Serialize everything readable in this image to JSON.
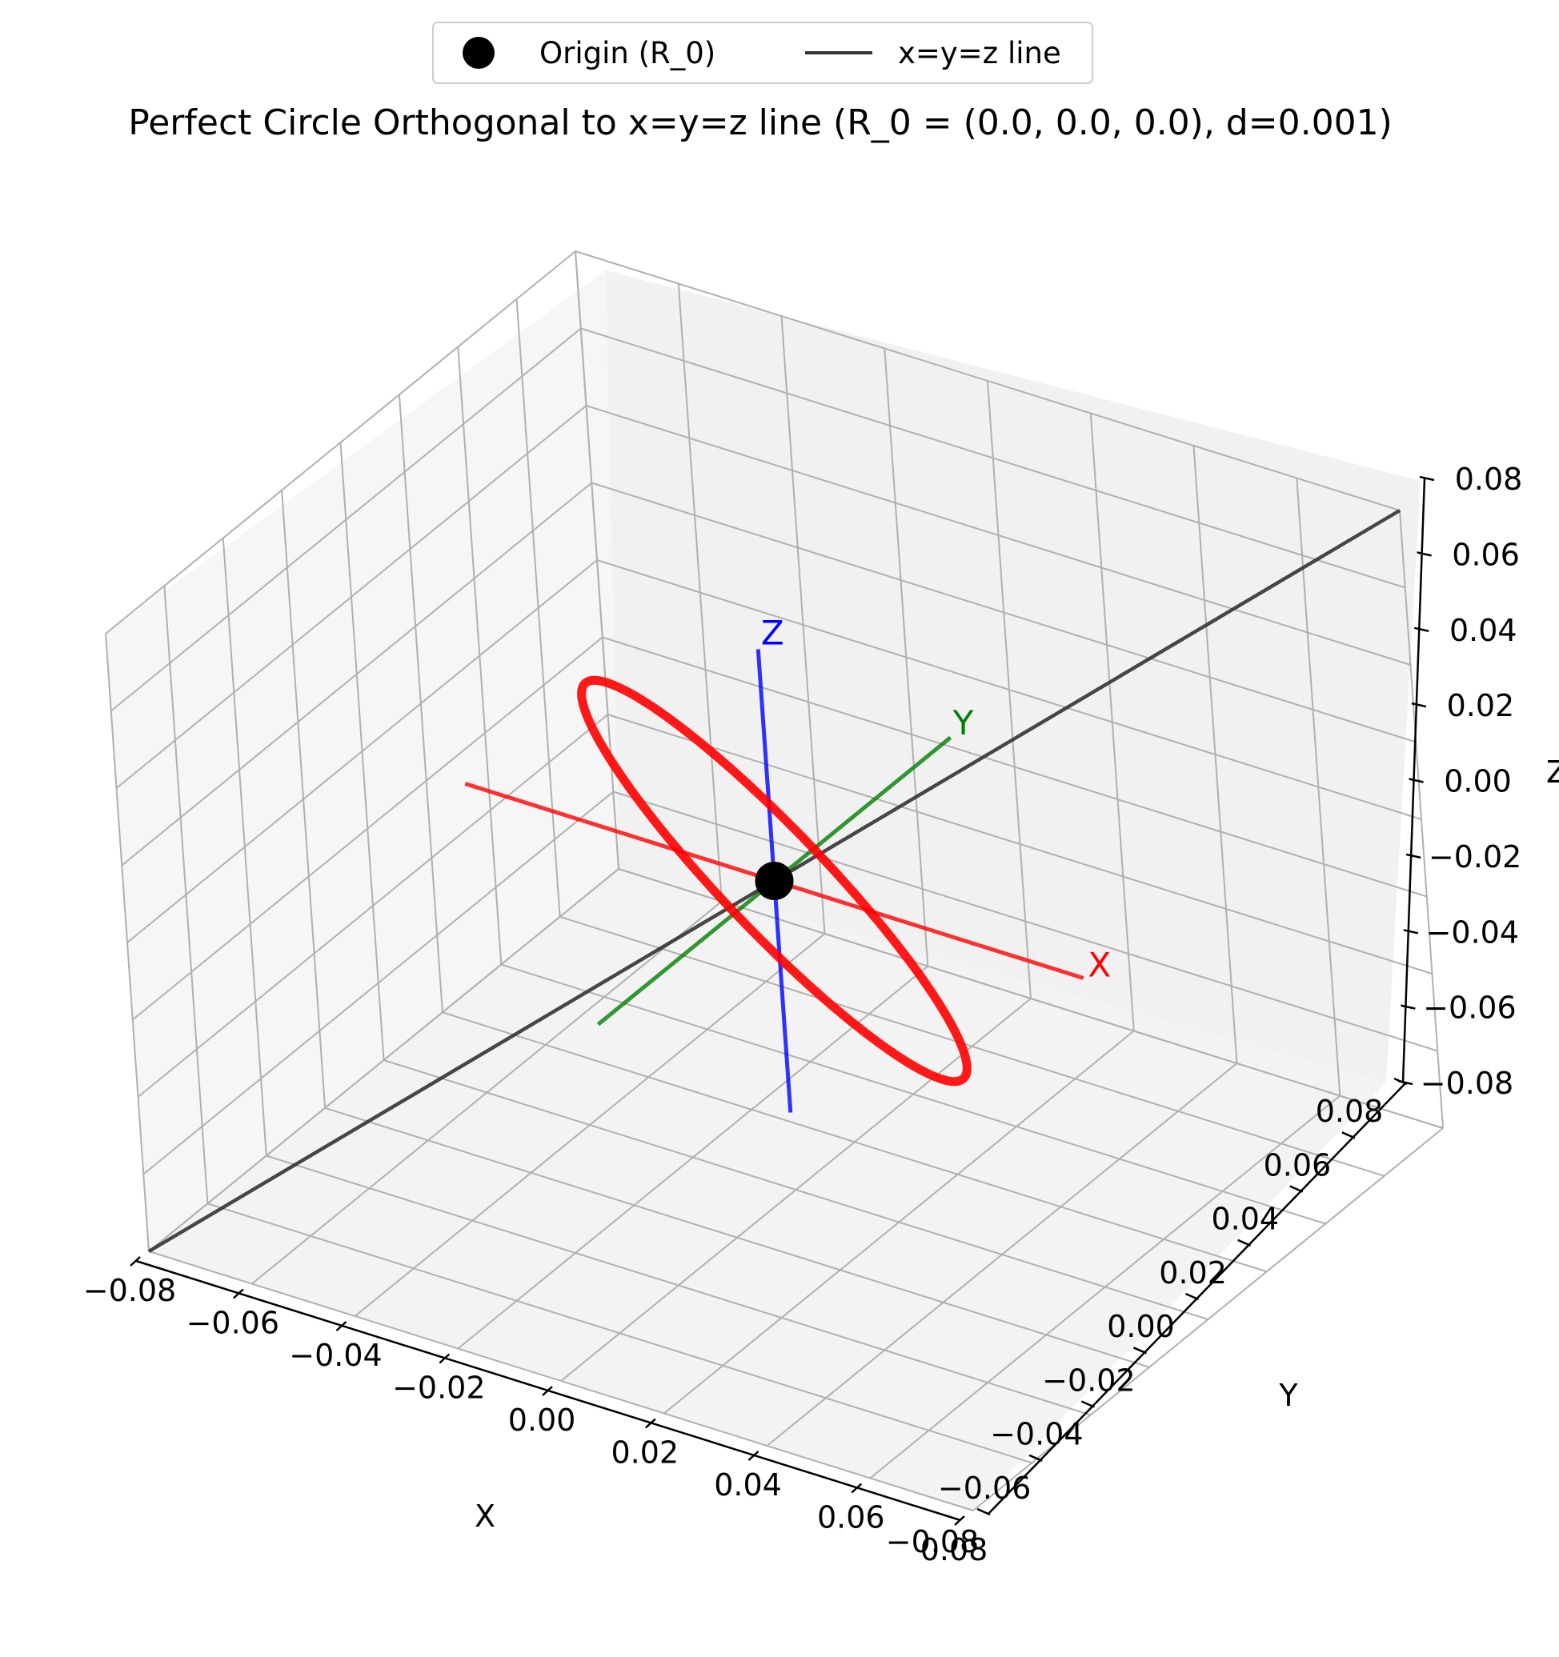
{
  "chart_data": {
    "type": "line3d",
    "title": "Perfect Circle Orthogonal to x=y=z line (R_0 = (0.0, 0.0, 0.0), d=0.001)",
    "xlabel": "X",
    "ylabel": "Y",
    "zlabel": "Z",
    "xlim": [
      -0.08,
      0.08
    ],
    "ylim": [
      -0.08,
      0.08
    ],
    "zlim": [
      -0.08,
      0.08
    ],
    "xticks": [
      "−0.08",
      "−0.06",
      "−0.04",
      "−0.02",
      "0.00",
      "0.02",
      "0.04",
      "0.06",
      "0.08"
    ],
    "yticks": [
      "−0.08",
      "−0.06",
      "−0.04",
      "−0.02",
      "0.00",
      "0.02",
      "0.04",
      "0.06",
      "0.08"
    ],
    "zticks": [
      "−0.08",
      "−0.06",
      "−0.04",
      "−0.02",
      "0.00",
      "0.02",
      "0.04",
      "0.06",
      "0.08"
    ],
    "grid": true,
    "legend": {
      "placement": "upper center, above plot",
      "entries": [
        {
          "label": "Origin (R_0)",
          "marker": "circle",
          "color": "#000000"
        },
        {
          "label": "x=y=z line",
          "marker": "line",
          "color": "#333333"
        }
      ]
    },
    "origin": {
      "x": 0.0,
      "y": 0.0,
      "z": 0.0,
      "color": "#000000"
    },
    "diagonal_line": {
      "from": [
        -0.08,
        -0.08,
        -0.08
      ],
      "to": [
        0.08,
        0.08,
        0.08
      ],
      "color": "#333333"
    },
    "reference_axes": [
      {
        "label": "X",
        "from": [
          -0.06,
          0.0,
          0.0
        ],
        "to": [
          0.06,
          0.0,
          0.0
        ],
        "color": "#ff0000"
      },
      {
        "label": "Y",
        "from": [
          0.0,
          -0.06,
          0.0
        ],
        "to": [
          0.0,
          0.06,
          0.0
        ],
        "color": "#008000"
      },
      {
        "label": "Z",
        "from": [
          0.0,
          0.0,
          -0.06
        ],
        "to": [
          0.0,
          0.0,
          0.06
        ],
        "color": "#0000ff"
      }
    ],
    "circle": {
      "center": [
        0.0,
        0.0,
        0.0
      ],
      "radius": 0.05,
      "normal": [
        1,
        1,
        1
      ],
      "color": "#ff0000"
    }
  }
}
